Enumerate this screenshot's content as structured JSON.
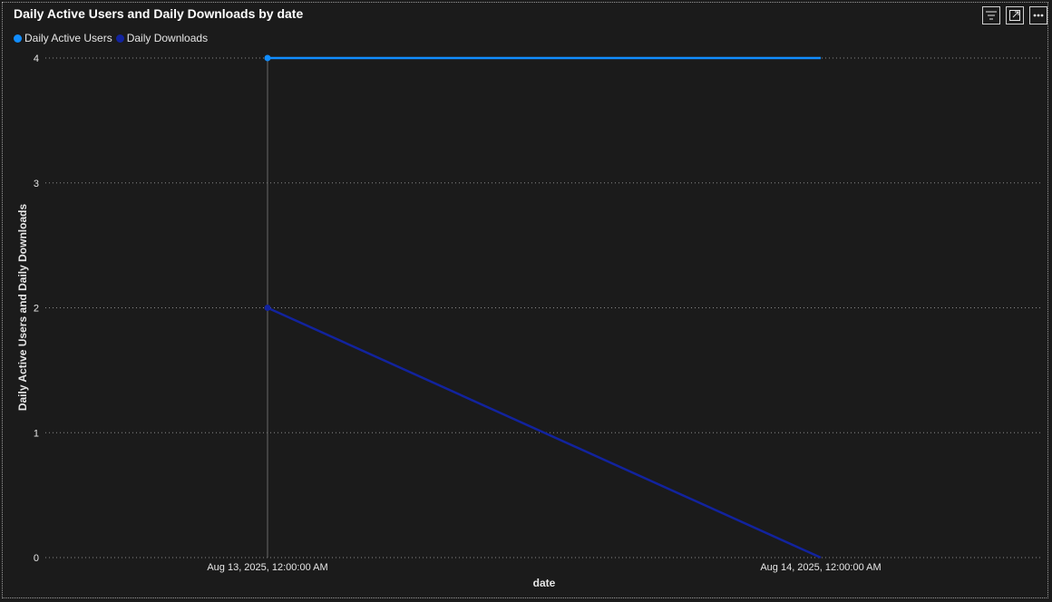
{
  "visual": {
    "title": "Daily Active Users and Daily Downloads by date"
  },
  "header_icons": [
    "filter-icon",
    "focus-mode-icon",
    "more-options-icon"
  ],
  "chart_data": {
    "type": "line",
    "title": "Daily Active Users and Daily Downloads by date",
    "xlabel": "date",
    "ylabel": "Daily Active Users and Daily Downloads",
    "categories": [
      "Aug 13, 2025, 12:00:00 AM",
      "Aug 14, 2025, 12:00:00 AM"
    ],
    "series": [
      {
        "name": "Daily Active Users",
        "values": [
          4,
          4
        ],
        "color": "#118dff"
      },
      {
        "name": "Daily Downloads",
        "values": [
          2,
          0
        ],
        "color": "#12239e"
      }
    ],
    "ylim": [
      0,
      4
    ],
    "yticks": [
      "0",
      "1",
      "2",
      "3",
      "4"
    ],
    "grid": "horizontal dotted",
    "legend_position": "top-left"
  }
}
